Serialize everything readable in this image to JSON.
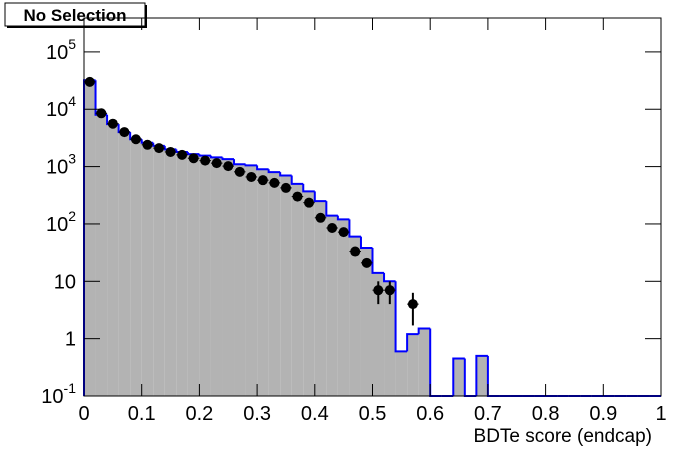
{
  "chart_data": {
    "type": "histogram",
    "title": "No Selection",
    "x_label": "BDTe score (endcap)",
    "bins": [
      0,
      0.02,
      0.04,
      0.06,
      0.08,
      0.1,
      0.12,
      0.14,
      0.16,
      0.18,
      0.2,
      0.22,
      0.24,
      0.26,
      0.28,
      0.3,
      0.32,
      0.34,
      0.36,
      0.38,
      0.4,
      0.42,
      0.44,
      0.46,
      0.48,
      0.5,
      0.52,
      0.54,
      0.56,
      0.58,
      0.6,
      0.62,
      0.64,
      0.66,
      0.68,
      0.7,
      0.72,
      0.74,
      0.76,
      0.78,
      0.8,
      0.82,
      0.84,
      0.86,
      0.88,
      0.9,
      0.92,
      0.94,
      0.96,
      0.98,
      1
    ],
    "values": [
      32000,
      8000,
      5500,
      4000,
      3000,
      2600,
      2300,
      2000,
      1800,
      1650,
      1550,
      1450,
      1350,
      1100,
      1050,
      900,
      800,
      700,
      500,
      370,
      250,
      140,
      120,
      60,
      38,
      14,
      10,
      0.6,
      1.2,
      1.5,
      0,
      0,
      0.45,
      0,
      0.5,
      0,
      0,
      0,
      0,
      0,
      0,
      0,
      0,
      0,
      0,
      0,
      0,
      0,
      0,
      0
    ],
    "fill": "#b3b3b3",
    "color": "#0000ff",
    "data_points": {
      "color": "#000000",
      "values": [
        30000,
        8500,
        5600,
        4000,
        3000,
        2400,
        2100,
        1800,
        1600,
        1400,
        1270,
        1150,
        1020,
        810,
        660,
        580,
        520,
        425,
        300,
        235,
        128,
        85,
        72,
        33,
        21,
        7,
        7,
        null,
        4,
        null,
        null,
        null,
        null,
        null,
        null,
        null,
        null,
        null,
        null,
        null,
        null,
        null,
        null,
        null,
        null,
        null,
        null,
        null,
        null,
        null
      ],
      "errors": [
        null,
        null,
        null,
        null,
        null,
        null,
        null,
        null,
        null,
        null,
        null,
        null,
        null,
        null,
        null,
        null,
        null,
        null,
        null,
        null,
        null,
        null,
        null,
        null,
        null,
        3,
        3,
        null,
        2.3,
        null,
        null,
        null,
        null,
        null,
        null,
        null,
        null,
        null,
        null,
        null,
        null,
        null,
        null,
        null,
        null,
        null,
        null,
        null,
        null,
        null
      ]
    },
    "xlim": [
      0,
      1
    ],
    "xticks": [
      0,
      0.1,
      0.2,
      0.3,
      0.4,
      0.5,
      0.6,
      0.7,
      0.8,
      0.9,
      1
    ],
    "ylim": [
      0.1,
      390000
    ],
    "log_y": true,
    "yticks": [
      {
        "value": 0.1,
        "label": "10",
        "sup": "-1"
      },
      1,
      10,
      {
        "value": 100,
        "label": "10",
        "sup": "2"
      },
      {
        "value": 1000,
        "label": "10",
        "sup": "3"
      },
      {
        "value": 10000,
        "label": "10",
        "sup": "4"
      },
      {
        "value": 100000,
        "label": "10",
        "sup": "5"
      }
    ]
  }
}
